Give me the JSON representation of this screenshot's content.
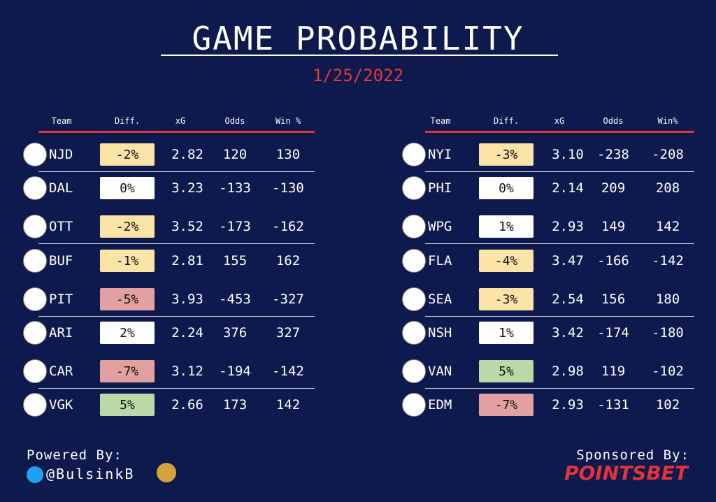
{
  "title": "GAME PROBABILITY",
  "date": "1/25/2022",
  "tables": [
    {
      "headers": [
        "Team",
        "Diff.",
        "xG",
        "Odds",
        "Win %"
      ],
      "rows": [
        [
          "NJD",
          "-2%",
          "2.82",
          "120",
          "130"
        ],
        [
          "DAL",
          "0%",
          "3.23",
          "-133",
          "-130"
        ],
        [
          "OTT",
          "-2%",
          "3.52",
          "-173",
          "-162"
        ],
        [
          "BUF",
          "-1%",
          "2.81",
          "155",
          "162"
        ],
        [
          "PIT",
          "-5%",
          "3.93",
          "-453",
          "-327"
        ],
        [
          "ARI",
          "2%",
          "2.24",
          "376",
          "327"
        ],
        [
          "CAR",
          "-7%",
          "3.12",
          "-194",
          "-142"
        ],
        [
          "VGK",
          "5%",
          "2.66",
          "173",
          "142"
        ]
      ]
    },
    {
      "headers": [
        "Team",
        "Diff.",
        "xG",
        "Odds",
        "Win%"
      ],
      "rows": [
        [
          "NYI",
          "-3%",
          "3.10",
          "-238",
          "-208"
        ],
        [
          "PHI",
          "0%",
          "2.14",
          "209",
          "208"
        ],
        [
          "WPG",
          "1%",
          "2.93",
          "149",
          "142"
        ],
        [
          "FLA",
          "-4%",
          "3.47",
          "-166",
          "-142"
        ],
        [
          "SEA",
          "-3%",
          "2.54",
          "156",
          "180"
        ],
        [
          "NSH",
          "1%",
          "3.42",
          "-174",
          "-180"
        ],
        [
          "VAN",
          "5%",
          "2.98",
          "119",
          "-102"
        ],
        [
          "EDM",
          "-7%",
          "2.93",
          "-131",
          "102"
        ]
      ]
    }
  ],
  "footer": {
    "powered": "Powered By:",
    "handle": "@BulsinkB",
    "sponsored": "Sponsored By:",
    "sponsor": "POINTSBET"
  }
}
